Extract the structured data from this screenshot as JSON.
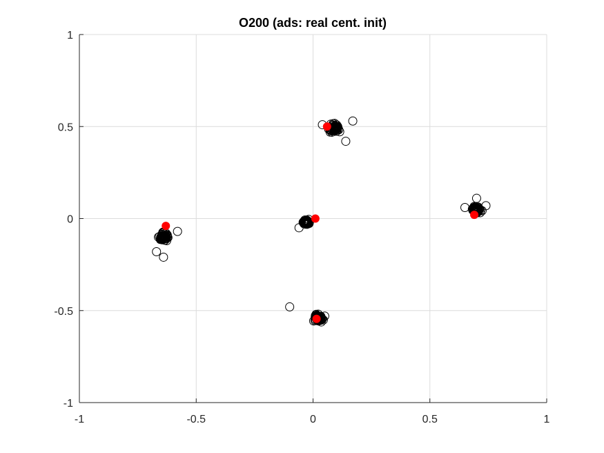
{
  "chart_data": {
    "type": "scatter",
    "title": "O200 (ads: real cent. init)",
    "xlabel": "",
    "ylabel": "",
    "xlim": [
      -1,
      1
    ],
    "ylim": [
      -1,
      1
    ],
    "xticks": [
      -1,
      -0.5,
      0,
      0.5,
      1
    ],
    "yticks": [
      -1,
      -0.5,
      0,
      0.5,
      1
    ],
    "xtick_labels": [
      "-1",
      "-0.5",
      "0",
      "0.5",
      "1"
    ],
    "ytick_labels": [
      "-1",
      "-0.5",
      "0",
      "0.5",
      "1"
    ],
    "grid": true,
    "legend": "none",
    "colors": {
      "samples": "#000000",
      "centroids": "#ff0000",
      "grid": "#dcdcdc",
      "axis": "#262626"
    },
    "series": [
      {
        "marker": "open-circle",
        "clusters": [
          {
            "center": [
              0.09,
              0.49
            ],
            "spread": 0.025
          },
          {
            "center": [
              0.7,
              0.05
            ],
            "spread": 0.018
          },
          {
            "center": [
              -0.64,
              -0.1
            ],
            "spread": 0.022
          },
          {
            "center": [
              -0.03,
              -0.02
            ],
            "spread": 0.015
          },
          {
            "center": [
              0.02,
              -0.54
            ],
            "spread": 0.02
          }
        ],
        "outliers": [
          [
            0.14,
            0.42
          ],
          [
            0.17,
            0.53
          ],
          [
            0.04,
            0.51
          ],
          [
            -0.1,
            -0.48
          ],
          [
            -0.64,
            -0.21
          ],
          [
            -0.67,
            -0.18
          ],
          [
            -0.58,
            -0.07
          ],
          [
            0.65,
            0.06
          ],
          [
            0.74,
            0.07
          ],
          [
            0.7,
            0.11
          ],
          [
            -0.06,
            -0.05
          ],
          [
            0.05,
            -0.53
          ]
        ]
      },
      {
        "marker": "filled-circle",
        "values": [
          [
            0.06,
            0.5
          ],
          [
            0.69,
            0.02
          ],
          [
            -0.63,
            -0.04
          ],
          [
            0.01,
            0.0
          ],
          [
            0.015,
            -0.545
          ]
        ]
      }
    ]
  }
}
